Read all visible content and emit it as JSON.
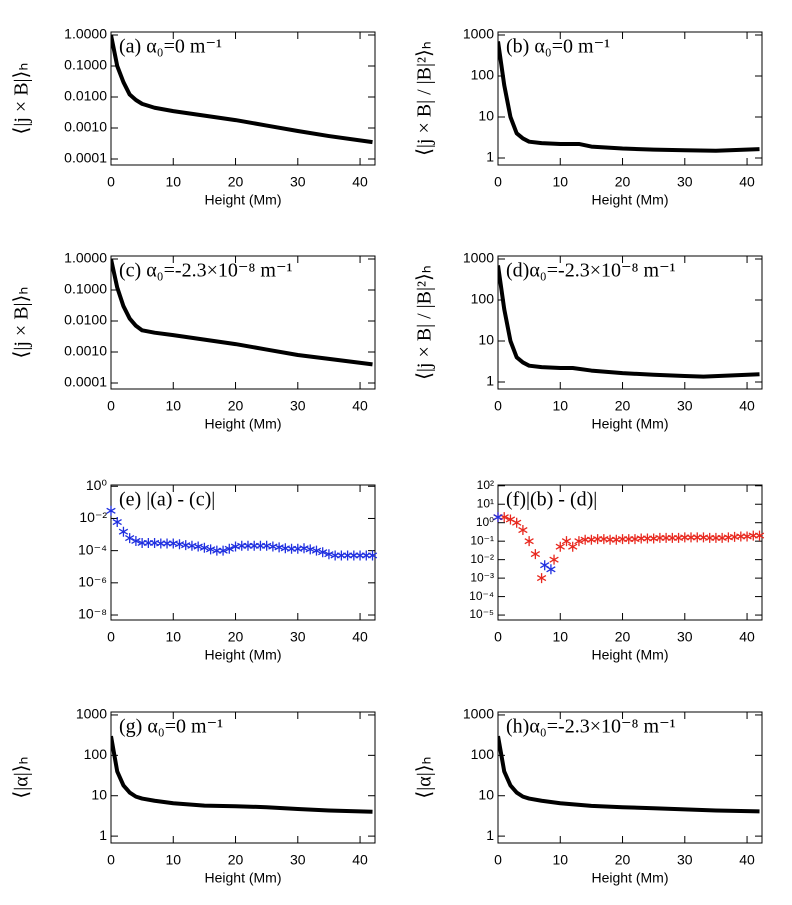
{
  "chart_data": [
    {
      "type": "line",
      "annotation": "(a)  α₀=0 m⁻¹",
      "xlabel": "Height (Mm)",
      "ylabel": "⟨|j × B|⟩ₕ",
      "color": "#000000",
      "log_y": true,
      "x": [
        0,
        1,
        2,
        3,
        4,
        5,
        7,
        10,
        15,
        20,
        25,
        30,
        35,
        42
      ],
      "values": [
        1,
        0.1,
        0.03,
        0.012,
        0.008,
        0.006,
        0.0045,
        0.0035,
        0.0025,
        0.0018,
        0.0012,
        0.0008,
        0.00055,
        0.00035
      ],
      "xlim": [
        0,
        42.4
      ],
      "xticks": [
        0,
        10,
        20,
        30,
        40
      ],
      "ylim": [
        6.4e-05,
        1.25
      ],
      "yticks": [
        {
          "value": 1,
          "label": "1.0000"
        },
        {
          "value": 0.1,
          "label": "0.1000"
        },
        {
          "value": 0.01,
          "label": "0.0100"
        },
        {
          "value": 0.001,
          "label": "0.0010"
        },
        {
          "value": 0.0001,
          "label": "0.0001"
        }
      ]
    },
    {
      "type": "line",
      "annotation": "(b)  α₀=0 m⁻¹",
      "xlabel": "Height (Mm)",
      "ylabel": "⟨|j × B| / |B|²⟩ₕ",
      "color": "#000000",
      "log_y": true,
      "x": [
        0,
        1,
        2,
        3,
        4,
        5,
        7,
        10,
        13,
        15,
        20,
        25,
        30,
        35,
        42
      ],
      "values": [
        700,
        60,
        10,
        4,
        3,
        2.5,
        2.3,
        2.2,
        2.2,
        1.9,
        1.7,
        1.6,
        1.55,
        1.5,
        1.65
      ],
      "xlim": [
        0,
        42.4
      ],
      "xticks": [
        0,
        10,
        20,
        30,
        40
      ],
      "ylim": [
        0.675,
        1184
      ],
      "yticks": [
        1,
        10,
        100,
        1000
      ]
    },
    {
      "type": "line",
      "annotation": "(c) α₀=-2.3×10⁻⁸ m⁻¹",
      "xlabel": "Height (Mm)",
      "ylabel": "⟨|j × B|⟩ₕ",
      "color": "#000000",
      "log_y": true,
      "x": [
        0,
        1,
        2,
        3,
        4,
        5,
        7,
        10,
        15,
        20,
        25,
        30,
        35,
        42
      ],
      "values": [
        1,
        0.12,
        0.03,
        0.012,
        0.007,
        0.005,
        0.0042,
        0.0035,
        0.0025,
        0.0018,
        0.0012,
        0.0008,
        0.0006,
        0.0004
      ],
      "xlim": [
        0,
        42.4
      ],
      "xticks": [
        0,
        10,
        20,
        30,
        40
      ],
      "ylim": [
        6.4e-05,
        1.25
      ],
      "yticks": [
        {
          "value": 1,
          "label": "1.0000"
        },
        {
          "value": 0.1,
          "label": "0.1000"
        },
        {
          "value": 0.01,
          "label": "0.0100"
        },
        {
          "value": 0.001,
          "label": "0.0010"
        },
        {
          "value": 0.0001,
          "label": "0.0001"
        }
      ]
    },
    {
      "type": "line",
      "annotation": "(d)α₀=-2.3×10⁻⁸ m⁻¹",
      "xlabel": "Height (Mm)",
      "ylabel": "⟨|j × B| / |B|²⟩ₕ",
      "color": "#000000",
      "log_y": true,
      "x": [
        0,
        1,
        2,
        3,
        4,
        5,
        7,
        10,
        12,
        15,
        20,
        25,
        30,
        33,
        42
      ],
      "values": [
        700,
        60,
        10,
        4,
        3,
        2.5,
        2.3,
        2.2,
        2.2,
        1.9,
        1.65,
        1.5,
        1.4,
        1.35,
        1.55
      ],
      "xlim": [
        0,
        42.4
      ],
      "xticks": [
        0,
        10,
        20,
        30,
        40
      ],
      "ylim": [
        0.675,
        1184
      ],
      "yticks": [
        1,
        10,
        100,
        1000
      ]
    },
    {
      "type": "scatter",
      "annotation": "(e) |(a) - (c)|",
      "xlabel": "Height (Mm)",
      "log_y": true,
      "series": [
        {
          "color": "#1f2fe0",
          "x": [
            0,
            1,
            2,
            3,
            4,
            5,
            6,
            7,
            8,
            9,
            10,
            11,
            12,
            13,
            14,
            15,
            16,
            17,
            18,
            19,
            20,
            21,
            22,
            23,
            24,
            25,
            26,
            27,
            28,
            29,
            30,
            31,
            32,
            33,
            34,
            35,
            36,
            37,
            38,
            39,
            40,
            41,
            42
          ],
          "values": [
            0.03,
            0.006,
            0.0015,
            0.0006,
            0.0004,
            0.0003,
            0.0003,
            0.0003,
            0.00028,
            0.00028,
            0.00028,
            0.00025,
            0.00022,
            0.0002,
            0.00018,
            0.00015,
            0.00012,
            0.0001,
            0.0001,
            0.00013,
            0.00018,
            0.0002,
            0.0002,
            0.0002,
            0.0002,
            0.0002,
            0.00018,
            0.00016,
            0.00014,
            0.00013,
            0.00013,
            0.00014,
            0.00012,
            0.0001,
            8e-05,
            6e-05,
            5e-05,
            5e-05,
            5e-05,
            5e-05,
            5e-05,
            5e-05,
            5e-05
          ]
        }
      ],
      "xlim": [
        0,
        42.4
      ],
      "xticks": [
        0,
        10,
        20,
        30,
        40
      ],
      "ylim": [
        4.9e-09,
        1.2
      ],
      "yticks": [
        {
          "value": 1,
          "label": "10⁰"
        },
        {
          "value": 0.01,
          "label": "10⁻²"
        },
        {
          "value": 0.0001,
          "label": "10⁻⁴"
        },
        {
          "value": 1e-06,
          "label": "10⁻⁶"
        },
        {
          "value": 1e-08,
          "label": "10⁻⁸"
        }
      ]
    },
    {
      "type": "scatter",
      "annotation": "(f)|(b) - (d)|",
      "xlabel": "Height (Mm)",
      "log_y": true,
      "series": [
        {
          "color": "#e8281e",
          "x": [
            0,
            1,
            2,
            3,
            4,
            5,
            6,
            7,
            9,
            10,
            11,
            12,
            13,
            14,
            15,
            16,
            17,
            18,
            19,
            20,
            21,
            22,
            23,
            24,
            25,
            26,
            27,
            28,
            29,
            30,
            31,
            32,
            33,
            34,
            35,
            36,
            37,
            38,
            39,
            40,
            41,
            42
          ],
          "values": [
            2,
            2,
            1.5,
            1,
            0.4,
            0.1,
            0.02,
            0.001,
            0.01,
            0.05,
            0.1,
            0.05,
            0.1,
            0.12,
            0.12,
            0.13,
            0.13,
            0.12,
            0.12,
            0.13,
            0.13,
            0.13,
            0.14,
            0.14,
            0.14,
            0.15,
            0.15,
            0.15,
            0.15,
            0.16,
            0.16,
            0.16,
            0.16,
            0.15,
            0.15,
            0.15,
            0.16,
            0.17,
            0.18,
            0.18,
            0.2,
            0.2
          ]
        },
        {
          "color": "#1f2fe0",
          "x": [
            0,
            7.5,
            8.5
          ],
          "values": [
            2,
            0.005,
            0.003
          ]
        }
      ],
      "xlim": [
        0,
        42.4
      ],
      "xticks": [
        0,
        10,
        20,
        30,
        40
      ],
      "ylim": [
        5.4e-06,
        110
      ],
      "yticks": [
        {
          "value": 100,
          "label": "10²"
        },
        {
          "value": 10,
          "label": "10¹"
        },
        {
          "value": 1,
          "label": "10⁰"
        },
        {
          "value": 0.1,
          "label": "10⁻¹"
        },
        {
          "value": 0.01,
          "label": "10⁻²"
        },
        {
          "value": 0.001,
          "label": "10⁻³"
        },
        {
          "value": 0.0001,
          "label": "10⁻⁴"
        },
        {
          "value": 1e-05,
          "label": "10⁻⁵"
        }
      ]
    },
    {
      "type": "line",
      "annotation": "(g) α₀=0 m⁻¹",
      "xlabel": "Height (Mm)",
      "ylabel": "⟨|α|⟩ₕ",
      "color": "#000000",
      "log_y": true,
      "x": [
        0,
        1,
        2,
        3,
        4,
        5,
        7,
        10,
        15,
        20,
        25,
        30,
        35,
        42
      ],
      "values": [
        300,
        40,
        18,
        12,
        9.5,
        8.5,
        7.5,
        6.5,
        5.7,
        5.5,
        5.2,
        4.7,
        4.3,
        4.0
      ],
      "xlim": [
        0,
        42.4
      ],
      "xticks": [
        0,
        10,
        20,
        30,
        40
      ],
      "ylim": [
        0.675,
        1184
      ],
      "yticks": [
        1,
        10,
        100,
        1000
      ]
    },
    {
      "type": "line",
      "annotation": "(h)α₀=-2.3×10⁻⁸ m⁻¹",
      "xlabel": "Height (Mm)",
      "ylabel": "⟨|α|⟩ₕ",
      "color": "#000000",
      "log_y": true,
      "x": [
        0,
        1,
        2,
        3,
        4,
        5,
        7,
        10,
        15,
        20,
        25,
        30,
        35,
        42
      ],
      "values": [
        300,
        40,
        18,
        12,
        9.5,
        8.5,
        7.5,
        6.5,
        5.6,
        5.2,
        4.9,
        4.6,
        4.3,
        4.1
      ],
      "xlim": [
        0,
        42.4
      ],
      "xticks": [
        0,
        10,
        20,
        30,
        40
      ],
      "ylim": [
        0.675,
        1184
      ],
      "yticks": [
        1,
        10,
        100,
        1000
      ]
    }
  ]
}
